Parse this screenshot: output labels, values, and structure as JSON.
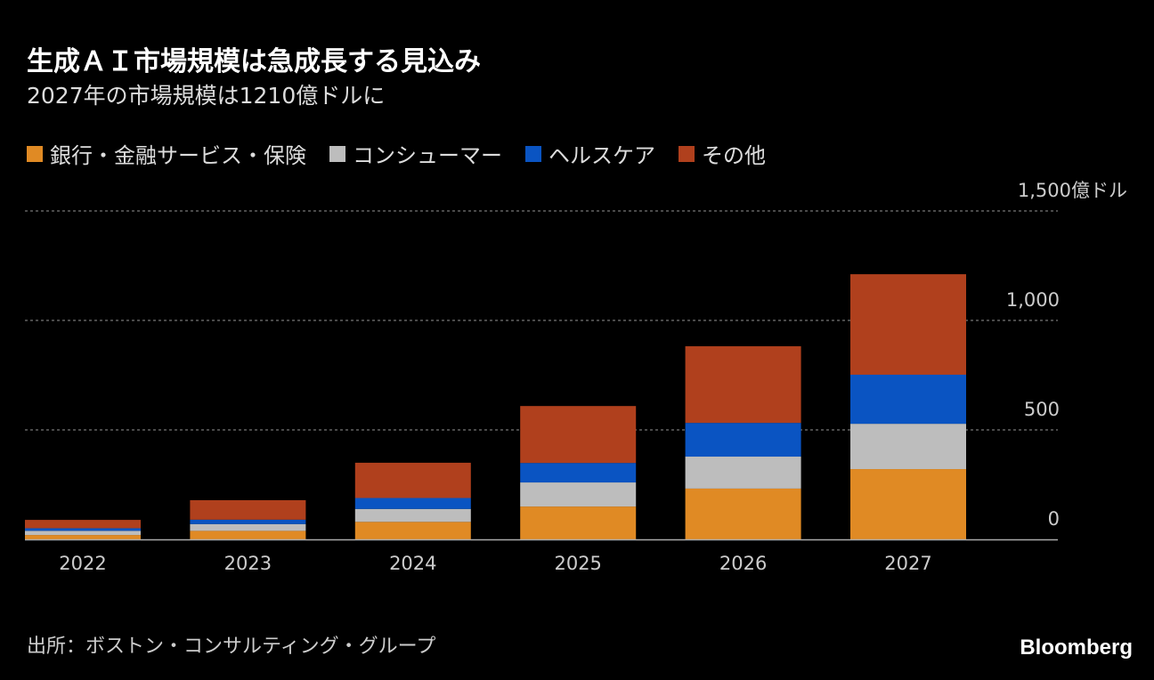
{
  "title": "生成ＡＩ市場規模は急成長する見込み",
  "subtitle": "2027年の市場規模は1210億ドルに",
  "source": "出所：ボストン・コンサルティング・グループ",
  "logo": "Bloomberg",
  "chart_data": {
    "type": "bar",
    "stacked": true,
    "categories": [
      "2022",
      "2023",
      "2024",
      "2025",
      "2026",
      "2027"
    ],
    "series": [
      {
        "name": "銀行・金融サービス・保険",
        "color": "#e08a24",
        "values": [
          20,
          39,
          80,
          150,
          232,
          321
        ]
      },
      {
        "name": "コンシューマー",
        "color": "#bdbdbd",
        "values": [
          19,
          31,
          59,
          110,
          146,
          207
        ]
      },
      {
        "name": "ヘルスケア",
        "color": "#0a54c2",
        "values": [
          12,
          20,
          50,
          89,
          154,
          224
        ]
      },
      {
        "name": "その他",
        "color": "#b0401d",
        "values": [
          38,
          89,
          161,
          260,
          350,
          459
        ]
      }
    ],
    "ylim": [
      0,
      1500
    ],
    "yticks": [
      0,
      500,
      1000,
      1500
    ],
    "ytick_labels": [
      "0",
      "500",
      "1,000",
      "1,500億ドル"
    ],
    "grid": true,
    "legend": "top-left"
  }
}
